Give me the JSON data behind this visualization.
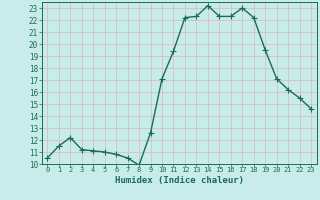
{
  "xlabel": "Humidex (Indice chaleur)",
  "ylabel": "",
  "x_values": [
    0,
    1,
    2,
    3,
    4,
    5,
    6,
    7,
    8,
    9,
    10,
    11,
    12,
    13,
    14,
    15,
    16,
    17,
    18,
    19,
    20,
    21,
    22,
    23
  ],
  "y_values": [
    10.5,
    11.5,
    12.2,
    11.2,
    11.1,
    11.0,
    10.8,
    10.5,
    9.9,
    12.6,
    17.1,
    19.4,
    22.2,
    22.3,
    23.2,
    22.3,
    22.3,
    23.0,
    22.2,
    19.5,
    17.1,
    16.2,
    15.5,
    14.6
  ],
  "line_color": "#1a6b5a",
  "marker": "+",
  "marker_size": 4,
  "line_width": 1.0,
  "bg_color": "#c8ecea",
  "grid_color": "#b0d8d4",
  "tick_color": "#1a6b5a",
  "label_color": "#1a6b5a",
  "ylim": [
    10,
    23.5
  ],
  "yticks": [
    10,
    11,
    12,
    13,
    14,
    15,
    16,
    17,
    18,
    19,
    20,
    21,
    22,
    23
  ],
  "xlim": [
    -0.5,
    23.5
  ],
  "xticks": [
    0,
    1,
    2,
    3,
    4,
    5,
    6,
    7,
    8,
    9,
    10,
    11,
    12,
    13,
    14,
    15,
    16,
    17,
    18,
    19,
    20,
    21,
    22,
    23
  ],
  "xlabel_fontsize": 6.5,
  "ytick_fontsize": 5.5,
  "xtick_fontsize": 5.0
}
